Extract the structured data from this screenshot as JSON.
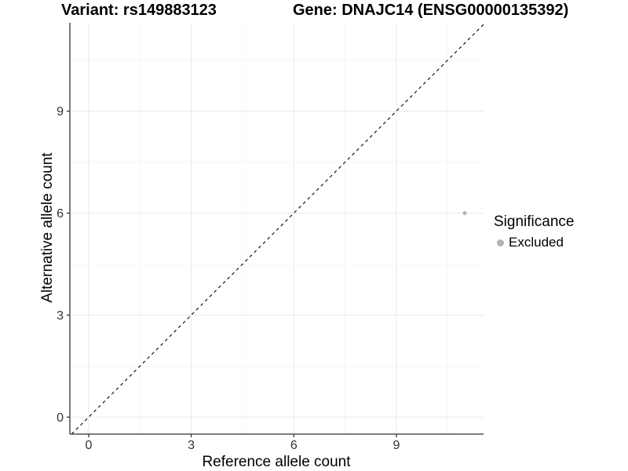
{
  "chart_data": {
    "type": "scatter",
    "title_left": "Variant: rs149883123",
    "title_right": "Gene: DNAJC14 (ENSG00000135392)",
    "xlabel": "Reference allele count",
    "ylabel": "Alternative allele count",
    "xlim": [
      -0.55,
      11.55
    ],
    "ylim": [
      -0.5,
      11.6
    ],
    "xticks": [
      0,
      3,
      6,
      9
    ],
    "yticks": [
      0,
      3,
      6,
      9
    ],
    "x_minor": [
      1.5,
      4.5,
      7.5,
      10.5
    ],
    "y_minor": [
      1.5,
      4.5,
      7.5,
      10.5
    ],
    "grid": "major+minor",
    "points": [
      {
        "x": 11,
        "y": 6,
        "significance": "Excluded"
      }
    ],
    "reference_line": {
      "type": "identity",
      "slope": 1,
      "intercept": 0,
      "style": "dashed",
      "color": "#000000"
    },
    "legend": {
      "title": "Significance",
      "position": "right",
      "items": [
        {
          "label": "Excluded",
          "color": "#b3b3b3"
        }
      ]
    },
    "colors": {
      "grid_major": "#e9e9e9",
      "grid_minor": "#f5f5f5",
      "axis_line": "#333333",
      "tick_label": "#333333",
      "excluded_point": "#b3b3b3"
    }
  }
}
